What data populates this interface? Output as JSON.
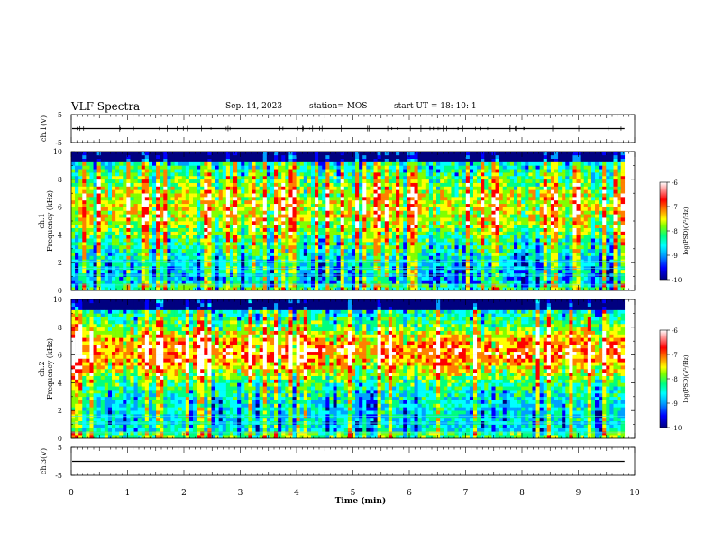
{
  "header": {
    "title": "VLF Spectra",
    "date": "Sep. 14, 2023",
    "station": "station= MOS",
    "start_ut": "start  UT  =   18: 10: 1"
  },
  "chart_data": [
    {
      "type": "line",
      "name": "ch1-waveform",
      "ylabel": "ch.1(V)",
      "ylim": [
        -5,
        5
      ],
      "yticks": [
        "5",
        "-5"
      ],
      "xlim": [
        0,
        10
      ],
      "value_approx": 0
    },
    {
      "type": "heatmap",
      "name": "ch1-spectrogram",
      "ylabel_channel": "ch.1",
      "ylabel": "Frequency (kHz)",
      "ylim": [
        0,
        10
      ],
      "yticks": [
        "0",
        "2",
        "4",
        "6",
        "8",
        "10"
      ],
      "xlim": [
        0,
        10
      ],
      "data_end_min": 9.82,
      "colorbar": {
        "label": "log(PSD)(V²/Hz)",
        "range": [
          -10,
          -6
        ],
        "ticks": [
          "-6",
          "-7",
          "-8",
          "-9",
          "-10"
        ]
      }
    },
    {
      "type": "heatmap",
      "name": "ch2-spectrogram",
      "ylabel_channel": "ch.2",
      "ylabel": "Frequency (kHz)",
      "ylim": [
        0,
        10
      ],
      "yticks": [
        "0",
        "2",
        "4",
        "6",
        "8",
        "10"
      ],
      "xlim": [
        0,
        10
      ],
      "data_end_min": 9.82,
      "colorbar": {
        "label": "log(PSD)(V²/Hz)",
        "range": [
          -10,
          -6
        ],
        "ticks": [
          "-6",
          "-7",
          "-8",
          "-9",
          "-10"
        ]
      }
    },
    {
      "type": "line",
      "name": "ch3-waveform",
      "ylabel": "ch.3(V)",
      "ylim": [
        -5,
        5
      ],
      "yticks": [
        "5",
        "-5"
      ],
      "xlim": [
        0,
        10
      ],
      "value_approx": 0
    }
  ],
  "xaxis": {
    "label": "Time (min)",
    "ticks": [
      "0",
      "1",
      "2",
      "3",
      "4",
      "5",
      "6",
      "7",
      "8",
      "9",
      "10"
    ]
  },
  "colors": {
    "colormap": [
      "#000080",
      "#0000ff",
      "#00a0ff",
      "#00ffff",
      "#00ff80",
      "#80ff00",
      "#ffff00",
      "#ff8000",
      "#ff0000",
      "#ffffff"
    ]
  }
}
